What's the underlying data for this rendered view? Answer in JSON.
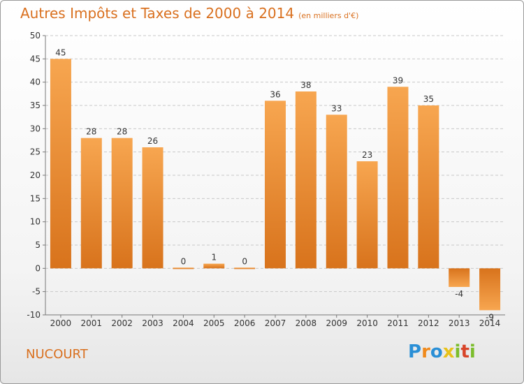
{
  "title": "Autres Impôts et Taxes de 2000 à 2014",
  "title_unit": "(en milliers d'€)",
  "commune": "NUCOURT",
  "logo": {
    "letters": [
      "P",
      "r",
      "o",
      "x",
      "i",
      "t",
      "i"
    ],
    "colors": [
      "#2a8fd6",
      "#f08a1c",
      "#2a8fd6",
      "#e8c21a",
      "#7cbd2c",
      "#d8452a",
      "#7cbd2c"
    ]
  },
  "chart_data": {
    "type": "bar",
    "categories": [
      "2000",
      "2001",
      "2002",
      "2003",
      "2004",
      "2005",
      "2006",
      "2007",
      "2008",
      "2009",
      "2010",
      "2011",
      "2012",
      "2013",
      "2014"
    ],
    "values": [
      45,
      28,
      28,
      26,
      0,
      1,
      0,
      36,
      38,
      33,
      23,
      39,
      35,
      -4,
      -9
    ],
    "data_labels": [
      "45",
      "28",
      "28",
      "26",
      "0",
      "1",
      "0",
      "36",
      "38",
      "33",
      "23",
      "39",
      "35",
      "-4",
      "-9"
    ],
    "y_ticks": [
      50,
      45,
      40,
      35,
      30,
      25,
      20,
      15,
      10,
      5,
      0,
      -5,
      -10
    ],
    "ylim": [
      -10,
      50
    ],
    "grid": "horizontal dashed",
    "bar_color": "#f0922e"
  }
}
